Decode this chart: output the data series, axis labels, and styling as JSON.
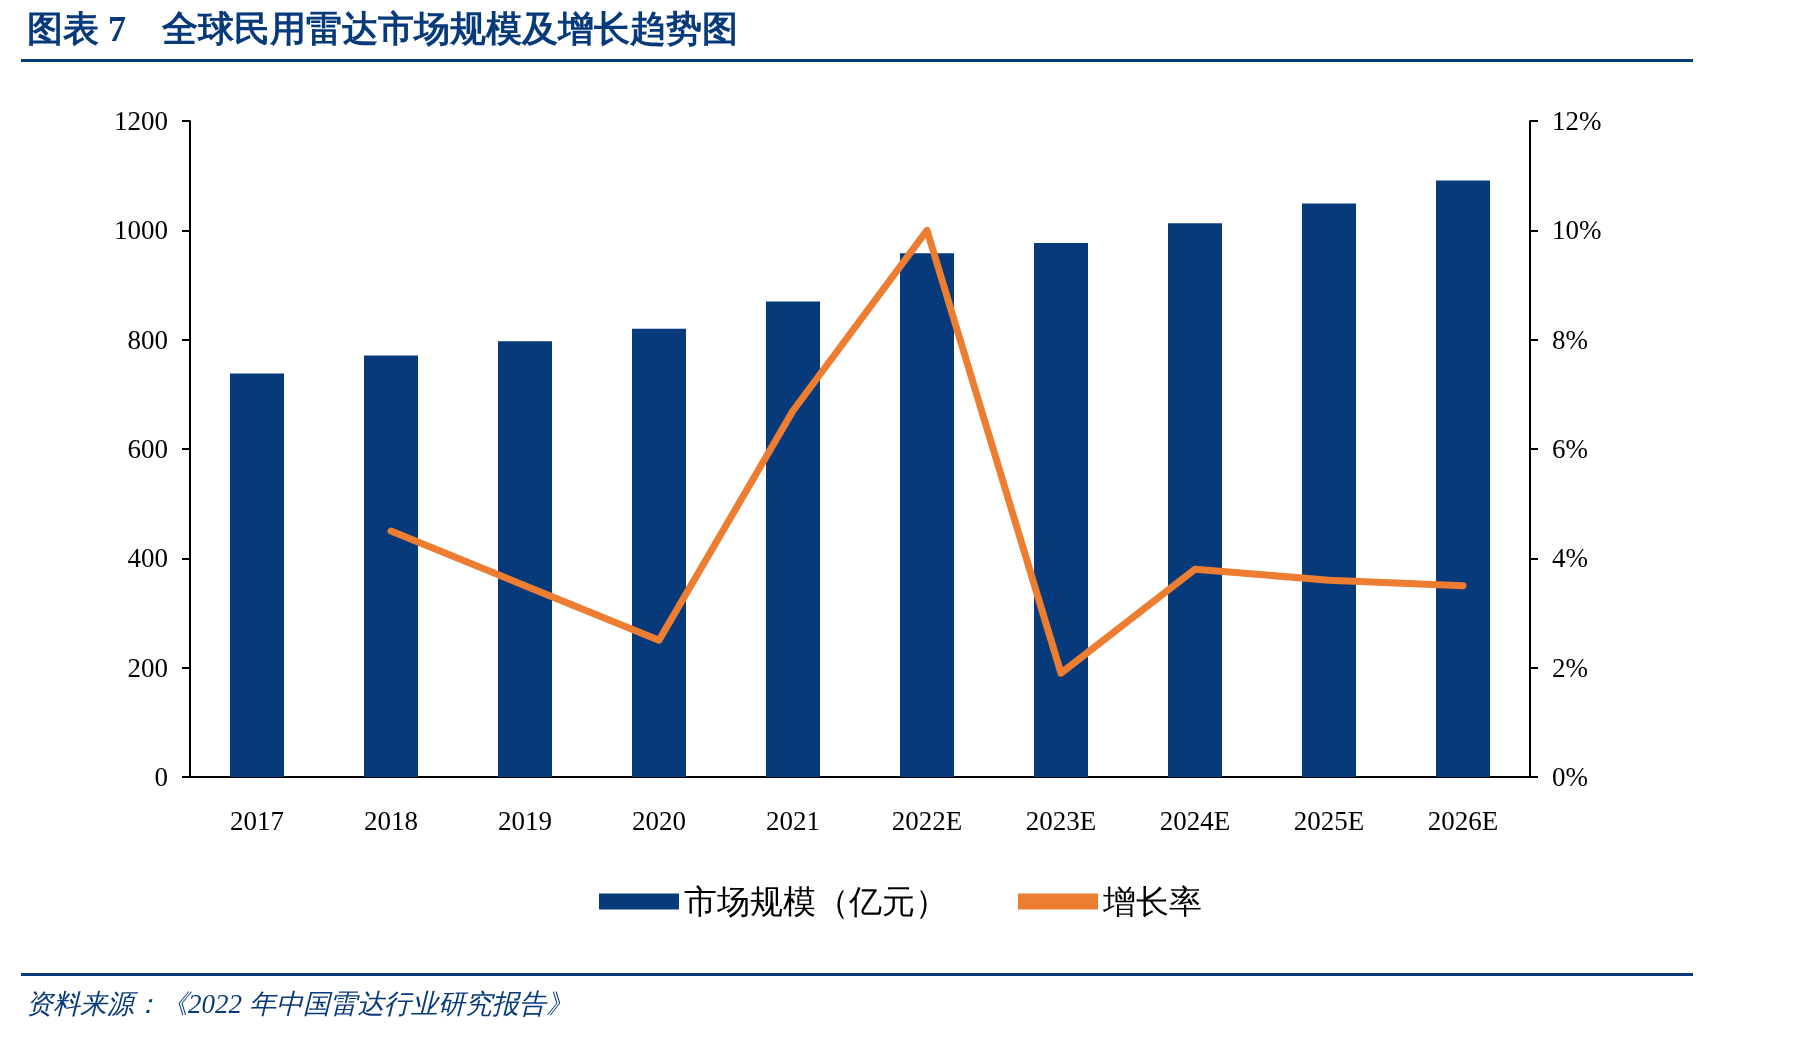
{
  "chart_data": {
    "type": "bar",
    "title": "图表 7　全球民用雷达市场规模及增长趋势图",
    "categories": [
      "2017",
      "2018",
      "2019",
      "2020",
      "2021",
      "2022E",
      "2023E",
      "2024E",
      "2025E",
      "2026E"
    ],
    "series": [
      {
        "name": "市场规模（亿元）",
        "color": "#073a7b",
        "values": [
          738,
          771,
          797,
          820,
          870,
          958,
          977,
          1013,
          1049,
          1091
        ]
      },
      {
        "name": "增长率",
        "type": "line",
        "axis": "y2",
        "color": "#ed7d31",
        "values": [
          null,
          4.5,
          3.5,
          2.5,
          6.7,
          10.0,
          1.9,
          3.8,
          3.6,
          3.5
        ]
      }
    ],
    "ylim": [
      0,
      1200
    ],
    "yticks": [
      0,
      200,
      400,
      600,
      800,
      1000,
      1200
    ],
    "y2lim": [
      0,
      12
    ],
    "y2ticks": [
      {
        "value": 0,
        "label": "0%"
      },
      {
        "value": 2,
        "label": "2%"
      },
      {
        "value": 4,
        "label": "4%"
      },
      {
        "value": 6,
        "label": "6%"
      },
      {
        "value": 8,
        "label": "8%"
      },
      {
        "value": 10,
        "label": "10%"
      },
      {
        "value": 12,
        "label": "12%"
      }
    ],
    "grid": false,
    "legend": "bottom",
    "marker": "none",
    "line_style": "solid",
    "annotations": [
      "资料来源：《2022 年中国雷达行业研究报告》"
    ]
  }
}
